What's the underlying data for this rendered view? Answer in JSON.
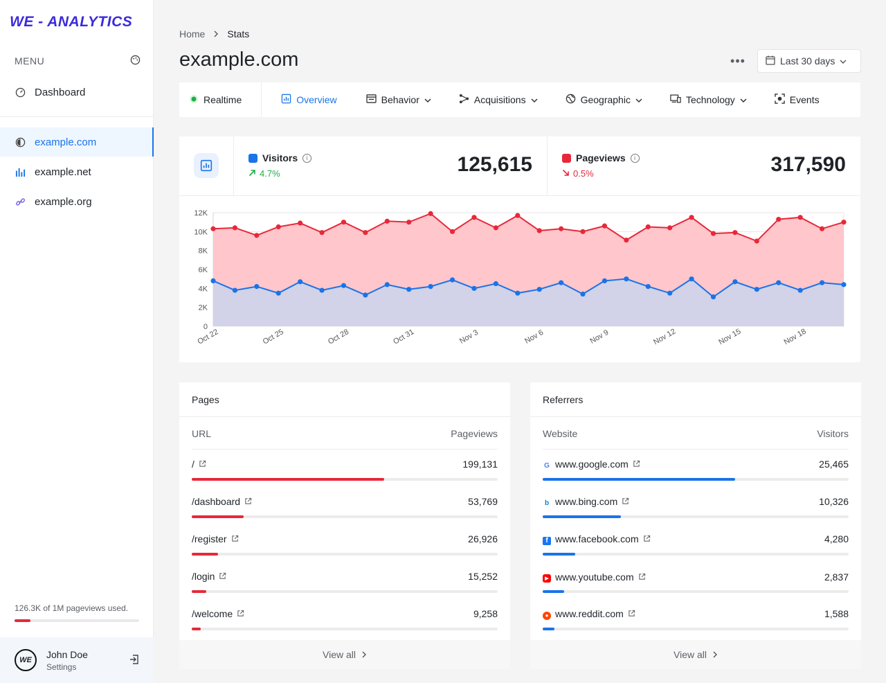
{
  "brand": {
    "logo": "WE - ANALYTICS"
  },
  "sidebar": {
    "menu_label": "MENU",
    "dashboard": "Dashboard",
    "sites": [
      {
        "label": "example.com",
        "icon": "circle-half-icon",
        "active": true
      },
      {
        "label": "example.net",
        "icon": "bar-chart-icon",
        "active": false
      },
      {
        "label": "example.org",
        "icon": "link-icon",
        "active": false
      }
    ],
    "usage_text": "126.3K of 1M pageviews used.",
    "usage_fraction": 0.126,
    "user_name": "John Doe",
    "user_sub": "Settings"
  },
  "header": {
    "breadcrumb": [
      "Home",
      "Stats"
    ],
    "title": "example.com",
    "range": "Last 30 days"
  },
  "tabs": [
    {
      "label": "Realtime",
      "icon": "live-dot-icon"
    },
    {
      "label": "Overview",
      "icon": "chart-icon",
      "active": true
    },
    {
      "label": "Behavior",
      "icon": "window-icon",
      "dropdown": true
    },
    {
      "label": "Acquisitions",
      "icon": "share-icon",
      "dropdown": true
    },
    {
      "label": "Geographic",
      "icon": "globe-icon",
      "dropdown": true
    },
    {
      "label": "Technology",
      "icon": "devices-icon",
      "dropdown": true
    },
    {
      "label": "Events",
      "icon": "focus-icon"
    }
  ],
  "metrics": {
    "visitors": {
      "label": "Visitors",
      "change": "4.7%",
      "value": "125,615",
      "color": "#1a73e8",
      "up": true
    },
    "pageviews": {
      "label": "Pageviews",
      "change": "0.5%",
      "value": "317,590",
      "color": "#e8283a",
      "up": false
    }
  },
  "chart_data": {
    "type": "area",
    "x": [
      "Oct 22",
      "Oct 23",
      "Oct 24",
      "Oct 25",
      "Oct 26",
      "Oct 27",
      "Oct 28",
      "Oct 29",
      "Oct 30",
      "Oct 31",
      "Nov 1",
      "Nov 2",
      "Nov 3",
      "Nov 4",
      "Nov 5",
      "Nov 6",
      "Nov 7",
      "Nov 8",
      "Nov 9",
      "Nov 10",
      "Nov 11",
      "Nov 12",
      "Nov 13",
      "Nov 14",
      "Nov 15",
      "Nov 16",
      "Nov 17",
      "Nov 18",
      "Nov 19",
      "Nov 20"
    ],
    "x_tick_labels": [
      "Oct 22",
      "Oct 25",
      "Oct 28",
      "Oct 31",
      "Nov 3",
      "Nov 6",
      "Nov 9",
      "Nov 12",
      "Nov 15",
      "Nov 18"
    ],
    "ylim": [
      0,
      12000
    ],
    "y_ticks": [
      "0",
      "2K",
      "4K",
      "6K",
      "8K",
      "10K",
      "12K"
    ],
    "series": [
      {
        "name": "Pageviews",
        "color": "#e8283a",
        "values": [
          10300,
          10400,
          9600,
          10500,
          10900,
          9900,
          11000,
          9900,
          11100,
          11000,
          11900,
          10000,
          11500,
          10400,
          11700,
          10100,
          10300,
          10000,
          10600,
          9100,
          10500,
          10400,
          11500,
          9800,
          9900,
          9000,
          11300,
          11500,
          10300,
          11000
        ]
      },
      {
        "name": "Visitors",
        "color": "#1a73e8",
        "values": [
          4800,
          3800,
          4200,
          3500,
          4700,
          3800,
          4300,
          3300,
          4400,
          3900,
          4200,
          4900,
          4000,
          4500,
          3500,
          3900,
          4600,
          3400,
          4800,
          5000,
          4200,
          3500,
          5000,
          3100,
          4700,
          3900,
          4600,
          3800,
          4600,
          4400
        ]
      }
    ]
  },
  "pages": {
    "title": "Pages",
    "col1": "URL",
    "col2": "Pageviews",
    "rows": [
      {
        "label": "/",
        "value": "199,131",
        "fraction": 1.0
      },
      {
        "label": "/dashboard",
        "value": "53,769",
        "fraction": 0.27
      },
      {
        "label": "/register",
        "value": "26,926",
        "fraction": 0.135
      },
      {
        "label": "/login",
        "value": "15,252",
        "fraction": 0.077
      },
      {
        "label": "/welcome",
        "value": "9,258",
        "fraction": 0.047
      }
    ],
    "view_all": "View all"
  },
  "referrers": {
    "title": "Referrers",
    "col1": "Website",
    "col2": "Visitors",
    "rows": [
      {
        "label": "www.google.com",
        "value": "25,465",
        "fraction": 1.0,
        "icon": "google-icon",
        "color": "#4285f4"
      },
      {
        "label": "www.bing.com",
        "value": "10,326",
        "fraction": 0.405,
        "icon": "bing-icon",
        "color": "#0a84d8"
      },
      {
        "label": "www.facebook.com",
        "value": "4,280",
        "fraction": 0.168,
        "icon": "facebook-icon",
        "color": "#1877f2"
      },
      {
        "label": "www.youtube.com",
        "value": "2,837",
        "fraction": 0.111,
        "icon": "youtube-icon",
        "color": "#ff0000"
      },
      {
        "label": "www.reddit.com",
        "value": "1,588",
        "fraction": 0.062,
        "icon": "reddit-icon",
        "color": "#ff4500"
      }
    ],
    "view_all": "View all"
  }
}
